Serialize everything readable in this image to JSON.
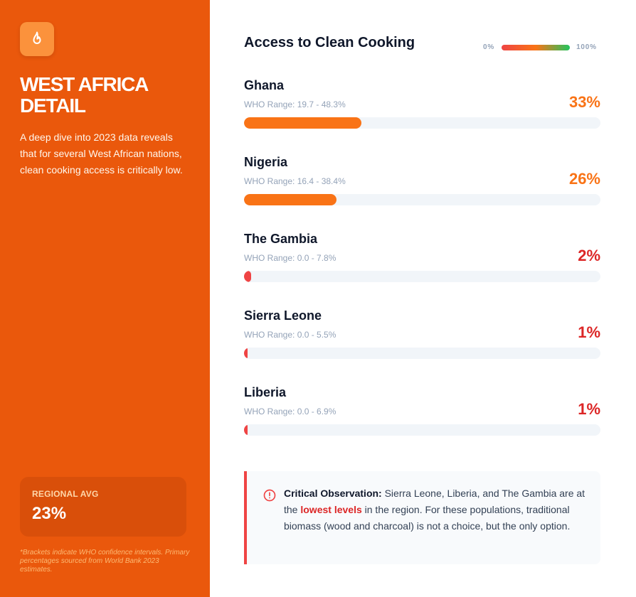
{
  "sidebar": {
    "icon": "flame-icon",
    "title": "WEST AFRICA\nDETAIL",
    "description": "A deep dive into 2023 data reveals that for several West African nations, clean cooking access is critically low.",
    "regional_avg_label": "REGIONAL AVG",
    "regional_avg_value": "23%",
    "footnote": "*Brackets indicate WHO confidence intervals. Primary percentages sourced from World Bank 2023 estimates."
  },
  "colors": {
    "sidebar_bg": "#ea580c",
    "high": "#f97316",
    "low": "#ef4444",
    "value_high": "#f97316",
    "value_low": "#dc2626"
  },
  "chart_data": {
    "type": "bar",
    "orientation": "horizontal",
    "title": "Access to Clean Cooking",
    "legend": {
      "min_label": "0%",
      "max_label": "100%",
      "placement": "top-right"
    },
    "xlim": [
      0,
      100
    ],
    "categories": [
      "Ghana",
      "Nigeria",
      "The Gambia",
      "Sierra Leone",
      "Liberia"
    ],
    "values": [
      33,
      26,
      2,
      1,
      1
    ],
    "value_labels": [
      "33%",
      "26%",
      "2%",
      "1%",
      "1%"
    ],
    "ranges": [
      "WHO Range: 19.7 - 48.3%",
      "WHO Range: 16.4 - 38.4%",
      "WHO Range: 0.0 - 7.8%",
      "WHO Range: 0.0 - 5.5%",
      "WHO Range: 0.0 - 6.9%"
    ]
  },
  "note": {
    "icon": "alert-circle-icon",
    "heading": "Critical Observation:",
    "text_1": " Sierra Leone, Liberia, and The Gambia are at the ",
    "highlight": "lowest levels",
    "text_2": " in the region. For these populations, traditional biomass (wood and charcoal) is not a choice, but the only option."
  }
}
